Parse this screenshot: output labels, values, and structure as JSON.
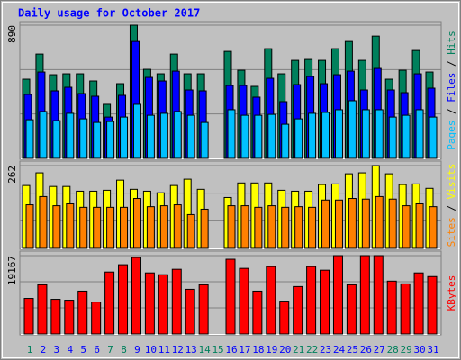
{
  "chart_data": [
    {
      "type": "bar",
      "title": "Daily usage for October 2017",
      "ylim": [
        0,
        890
      ],
      "yticks": [
        890
      ],
      "legend_separator": " / ",
      "series": [
        {
          "name": "Hits",
          "color": "#00805c",
          "values": [
            529,
            697,
            559,
            565,
            565,
            517,
            361,
            499,
            890,
            595,
            565,
            697,
            565,
            565,
            null,
            715,
            589,
            481,
            733,
            565,
            655,
            661,
            655,
            733,
            781,
            655,
            817,
            529,
            589,
            721,
            577
          ]
        },
        {
          "name": "Files",
          "color": "#0000ff",
          "values": [
            427,
            577,
            451,
            475,
            433,
            415,
            276,
            421,
            781,
            541,
            517,
            583,
            457,
            451,
            null,
            487,
            487,
            409,
            535,
            379,
            493,
            547,
            499,
            559,
            583,
            457,
            601,
            457,
            439,
            565,
            469
          ]
        },
        {
          "name": "Pages",
          "color": "#00c0ff",
          "values": [
            258,
            313,
            252,
            301,
            264,
            240,
            246,
            276,
            361,
            288,
            301,
            313,
            288,
            240,
            null,
            325,
            288,
            288,
            294,
            228,
            264,
            301,
            307,
            325,
            385,
            325,
            325,
            276,
            288,
            325,
            276
          ]
        }
      ]
    },
    {
      "type": "bar",
      "ylim": [
        0,
        262
      ],
      "yticks": [
        262
      ],
      "legend_separator": " / ",
      "series": [
        {
          "name": "Visits",
          "color": "#ffff00",
          "values": [
            199,
            239,
            196,
            196,
            181,
            181,
            184,
            216,
            187,
            181,
            176,
            199,
            219,
            187,
            null,
            161,
            207,
            207,
            207,
            184,
            181,
            181,
            202,
            204,
            236,
            239,
            262,
            236,
            202,
            204,
            190
          ]
        },
        {
          "name": "Sites",
          "color": "#ff8000",
          "values": [
            138,
            164,
            135,
            141,
            130,
            130,
            130,
            130,
            158,
            132,
            135,
            138,
            107,
            124,
            null,
            135,
            135,
            130,
            135,
            130,
            132,
            130,
            153,
            153,
            158,
            156,
            164,
            156,
            135,
            141,
            132
          ]
        }
      ]
    },
    {
      "type": "bar",
      "ylim": [
        0,
        19167
      ],
      "yticks": [
        19167
      ],
      "categories": [
        "1",
        "2",
        "3",
        "4",
        "5",
        "6",
        "7",
        "8",
        "9",
        "10",
        "11",
        "12",
        "13",
        "14",
        "15",
        "16",
        "17",
        "18",
        "19",
        "20",
        "21",
        "22",
        "23",
        "24",
        "25",
        "26",
        "27",
        "28",
        "29",
        "30",
        "31"
      ],
      "category_colors": [
        "#00805c",
        "#0000ff",
        "#0000ff",
        "#0000ff",
        "#0000ff",
        "#0000ff",
        "#00805c",
        "#00805c",
        "#0000ff",
        "#0000ff",
        "#0000ff",
        "#0000ff",
        "#0000ff",
        "#00805c",
        "#00805c",
        "#0000ff",
        "#0000ff",
        "#0000ff",
        "#0000ff",
        "#0000ff",
        "#00805c",
        "#00805c",
        "#0000ff",
        "#0000ff",
        "#0000ff",
        "#0000ff",
        "#0000ff",
        "#00805c",
        "#00805c",
        "#0000ff",
        "#0000ff"
      ],
      "series": [
        {
          "name": "KBytes",
          "color": "#ff0000",
          "values": [
            8693,
            12037,
            8470,
            8247,
            10476,
            7801,
            15157,
            16940,
            18723,
            14934,
            14488,
            15826,
            10922,
            12037,
            null,
            18278,
            16049,
            10476,
            16495,
            8024,
            11591,
            16495,
            15603,
            19167,
            12037,
            19167,
            19167,
            12928,
            12260,
            14934,
            14043
          ]
        }
      ]
    }
  ]
}
